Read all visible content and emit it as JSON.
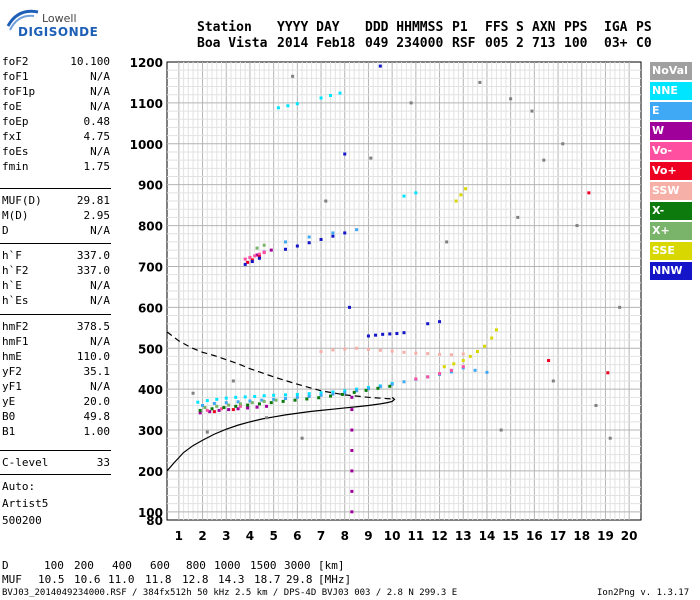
{
  "logo": {
    "line1": "Lowell",
    "line2": "DIGISONDE"
  },
  "header": {
    "labels": [
      "Station",
      "YYYY DAY",
      "DDD HHMMSS",
      "P1",
      "FFS",
      "S",
      "AXN",
      "PPS",
      "IGA",
      "PS"
    ],
    "values": [
      "Boa Vista",
      "2014 Feb18",
      "049 234000",
      "RSF",
      "005",
      "2",
      "713",
      "100",
      "03+",
      "C0"
    ]
  },
  "params_group1": [
    {
      "key": "foF2",
      "value": "10.100"
    },
    {
      "key": "foF1",
      "value": "N/A"
    },
    {
      "key": "foF1p",
      "value": "N/A"
    },
    {
      "key": "foE",
      "value": "N/A"
    },
    {
      "key": "foEp",
      "value": "0.48"
    },
    {
      "key": "fxI",
      "value": "4.75"
    },
    {
      "key": "foEs",
      "value": "N/A"
    },
    {
      "key": "fmin",
      "value": "1.75"
    }
  ],
  "params_group2": [
    {
      "key": "MUF(D)",
      "value": "29.81"
    },
    {
      "key": "M(D)",
      "value": "2.95"
    },
    {
      "key": "D",
      "value": "N/A"
    }
  ],
  "params_group3": [
    {
      "key": "h`F",
      "value": "337.0"
    },
    {
      "key": "h`F2",
      "value": "337.0"
    },
    {
      "key": "h`E",
      "value": "N/A"
    },
    {
      "key": "h`Es",
      "value": "N/A"
    }
  ],
  "params_group4": [
    {
      "key": "hmF2",
      "value": "378.5"
    },
    {
      "key": "hmF1",
      "value": "N/A"
    },
    {
      "key": "hmE",
      "value": "110.0"
    },
    {
      "key": "yF2",
      "value": "35.1"
    },
    {
      "key": "yF1",
      "value": "N/A"
    },
    {
      "key": "yE",
      "value": "20.0"
    },
    {
      "key": "B0",
      "value": "49.8"
    },
    {
      "key": "B1",
      "value": "1.00"
    }
  ],
  "clevel": {
    "key": "C-level",
    "value": "33"
  },
  "auto": {
    "line1": "Auto:",
    "line2": "Artist5",
    "line3": "500200"
  },
  "legend": [
    {
      "label": "NoVal",
      "color": "#a0a0a0"
    },
    {
      "label": "NNE",
      "color": "#00e5ff"
    },
    {
      "label": "E",
      "color": "#3fa9f5"
    },
    {
      "label": "W",
      "color": "#a0009a"
    },
    {
      "label": "Vo-",
      "color": "#ff4fa0"
    },
    {
      "label": "Vo+",
      "color": "#ee0022"
    },
    {
      "label": "SSW",
      "color": "#f7b0a8"
    },
    {
      "label": "X-",
      "color": "#0c7a0c"
    },
    {
      "label": "X+",
      "color": "#7ab36a"
    },
    {
      "label": "SSE",
      "color": "#d8d800"
    },
    {
      "label": "NNW",
      "color": "#1414c8"
    }
  ],
  "muf_table": {
    "d_label": "D",
    "d_values": [
      "100",
      "200",
      "400",
      "600",
      "800",
      "1000",
      "1500",
      "3000",
      "[km]"
    ],
    "muf_label": "MUF",
    "muf_values": [
      "10.5",
      "10.6",
      "11.0",
      "11.8",
      "12.8",
      "14.3",
      "18.7",
      "29.8",
      "[MHz]"
    ]
  },
  "footer": {
    "left": "BVJ03_2014049234000.RSF / 384fx512h 50 kHz 2.5 km / DPS-4D BVJ03 003 / 2.8 N 299.3 E",
    "right": "Ion2Png v. 1.3.17"
  },
  "chart_data": {
    "type": "scatter",
    "xlim": [
      0.5,
      20.5
    ],
    "ylim": [
      80,
      1200
    ],
    "x_ticks": [
      1,
      2,
      3,
      4,
      5,
      6,
      7,
      8,
      9,
      10,
      11,
      12,
      13,
      14,
      15,
      16,
      17,
      18,
      19,
      20
    ],
    "y_ticks": [
      80,
      100,
      200,
      300,
      400,
      500,
      600,
      700,
      800,
      900,
      1000,
      1100,
      1200
    ],
    "grid": true,
    "legend_position": "right",
    "series": [
      {
        "name": "NNE",
        "color": "#00e5ff",
        "x": [
          1.8,
          2.2,
          2.6,
          3.0,
          3.4,
          3.8,
          4.2,
          4.6,
          5.0,
          5.5,
          6.0,
          6.5,
          7.0,
          7.5,
          8.0,
          8.5,
          9.0,
          9.5,
          10.0,
          5.2,
          5.6,
          6.0,
          7.0,
          7.4,
          7.8,
          10.5,
          11.0
        ],
        "y": [
          368,
          372,
          375,
          378,
          380,
          381,
          382,
          384,
          385,
          386,
          387,
          389,
          391,
          393,
          396,
          400,
          404,
          408,
          414,
          1088,
          1093,
          1098,
          1112,
          1118,
          1124,
          872,
          880
        ]
      },
      {
        "name": "E",
        "color": "#3fa9f5",
        "x": [
          2.0,
          2.5,
          3.0,
          3.5,
          4.0,
          4.5,
          5.0,
          5.5,
          6.0,
          6.5,
          7.0,
          7.5,
          8.0,
          8.5,
          9.0,
          9.5,
          10.0,
          10.5,
          11.0,
          11.5,
          12.0,
          12.5,
          13.0,
          13.5,
          14.0,
          5.5,
          6.5,
          7.5,
          8.5
        ],
        "y": [
          360,
          365,
          367,
          369,
          371,
          373,
          375,
          377,
          380,
          382,
          385,
          388,
          391,
          396,
          401,
          406,
          412,
          418,
          424,
          430,
          436,
          442,
          452,
          446,
          441,
          760,
          772,
          782,
          790
        ]
      },
      {
        "name": "W",
        "color": "#a0009a",
        "x": [
          1.9,
          2.3,
          2.7,
          3.1,
          3.5,
          3.9,
          4.3,
          4.7,
          8.3,
          8.3,
          8.3,
          8.3,
          8.3,
          8.3,
          8.3,
          4.0,
          4.3,
          4.6,
          4.9
        ],
        "y": [
          342,
          345,
          348,
          350,
          352,
          354,
          356,
          358,
          380,
          350,
          300,
          250,
          200,
          150,
          100,
          722,
          728,
          735,
          740
        ]
      },
      {
        "name": "Vo-",
        "color": "#ff4fa0",
        "x": [
          3.8,
          4.0,
          4.2,
          4.4,
          4.6,
          11.0,
          11.5,
          12.0,
          12.5,
          13.0,
          2.2,
          2.8,
          3.6
        ],
        "y": [
          718,
          722,
          726,
          730,
          734,
          425,
          430,
          438,
          446,
          455,
          348,
          352,
          358
        ]
      },
      {
        "name": "Vo+",
        "color": "#ee0022",
        "x": [
          3.9,
          4.1,
          4.4,
          18.3,
          19.1,
          2.5,
          3.3,
          16.6
        ],
        "y": [
          710,
          716,
          724,
          880,
          440,
          345,
          350,
          470
        ]
      },
      {
        "name": "SSW",
        "color": "#f7b0a8",
        "x": [
          7.0,
          7.5,
          8.0,
          8.5,
          9.0,
          9.5,
          10.0,
          10.5,
          11.0,
          11.5,
          12.0,
          12.5,
          13.0
        ],
        "y": [
          492,
          496,
          498,
          500,
          497,
          495,
          493,
          490,
          488,
          487,
          485,
          484,
          486
        ]
      },
      {
        "name": "X-",
        "color": "#0c7a0c",
        "x": [
          1.9,
          2.4,
          2.9,
          3.4,
          3.9,
          4.4,
          4.9,
          5.4,
          5.9,
          6.4,
          6.9,
          7.4,
          7.9,
          8.4,
          8.9,
          9.4,
          9.9
        ],
        "y": [
          348,
          352,
          355,
          358,
          361,
          364,
          367,
          370,
          373,
          376,
          379,
          383,
          387,
          392,
          397,
          402,
          407
        ]
      },
      {
        "name": "X+",
        "color": "#7ab36a",
        "x": [
          2.1,
          2.6,
          3.1,
          3.6,
          4.1,
          4.6,
          5.1,
          4.3,
          4.6
        ],
        "y": [
          355,
          358,
          361,
          364,
          367,
          370,
          373,
          745,
          752
        ]
      },
      {
        "name": "SSE",
        "color": "#d8d800",
        "x": [
          12.2,
          12.6,
          13.0,
          13.3,
          13.6,
          13.9,
          14.2,
          14.4,
          12.7,
          12.9,
          13.1
        ],
        "y": [
          455,
          462,
          470,
          480,
          492,
          505,
          525,
          545,
          860,
          875,
          890
        ]
      },
      {
        "name": "NNW",
        "color": "#1414c8",
        "x": [
          3.8,
          4.1,
          4.4,
          5.5,
          6.0,
          6.5,
          7.0,
          7.5,
          8.0,
          8.2,
          9.0,
          9.3,
          9.6,
          9.9,
          10.2,
          10.5,
          11.5,
          12.0,
          8.0,
          9.5
        ],
        "y": [
          705,
          712,
          720,
          742,
          750,
          758,
          766,
          774,
          782,
          600,
          530,
          532,
          534,
          535,
          536,
          538,
          560,
          565,
          975,
          1190
        ]
      },
      {
        "name": "NoVal",
        "color": "#808080",
        "x": [
          1.6,
          2.2,
          3.3,
          4.7,
          5.8,
          6.2,
          7.2,
          9.1,
          10.8,
          12.3,
          13.7,
          15.0,
          15.9,
          16.4,
          17.2,
          17.8,
          18.6,
          19.2,
          19.6,
          14.6,
          15.3,
          16.8
        ],
        "y": [
          390,
          295,
          420,
          330,
          1165,
          280,
          860,
          965,
          1100,
          760,
          1150,
          1110,
          1080,
          960,
          1000,
          800,
          360,
          280,
          600,
          300,
          820,
          420
        ]
      }
    ],
    "profile_line": {
      "x": [
        0.5,
        0.8,
        1.2,
        1.6,
        2.0,
        2.5,
        3.0,
        3.5,
        4.0,
        4.5,
        5.0,
        5.5,
        6.0,
        6.5,
        7.0,
        7.5,
        8.0,
        8.5,
        9.0,
        9.5,
        9.8,
        10.0,
        10.1,
        10.0
      ],
      "y": [
        200,
        220,
        245,
        262,
        275,
        290,
        302,
        312,
        320,
        327,
        332,
        337,
        341,
        345,
        348,
        351,
        354,
        357,
        360,
        364,
        367,
        370,
        375,
        380
      ]
    },
    "dashed_line": {
      "x": [
        0.5,
        1.0,
        1.5,
        2.0,
        2.5,
        3.0,
        3.5,
        4.0,
        5.0,
        6.0,
        7.0,
        8.0,
        9.0,
        10.0,
        10.1
      ],
      "y": [
        540,
        518,
        502,
        490,
        482,
        472,
        462,
        450,
        430,
        412,
        396,
        386,
        380,
        376,
        378
      ]
    }
  }
}
